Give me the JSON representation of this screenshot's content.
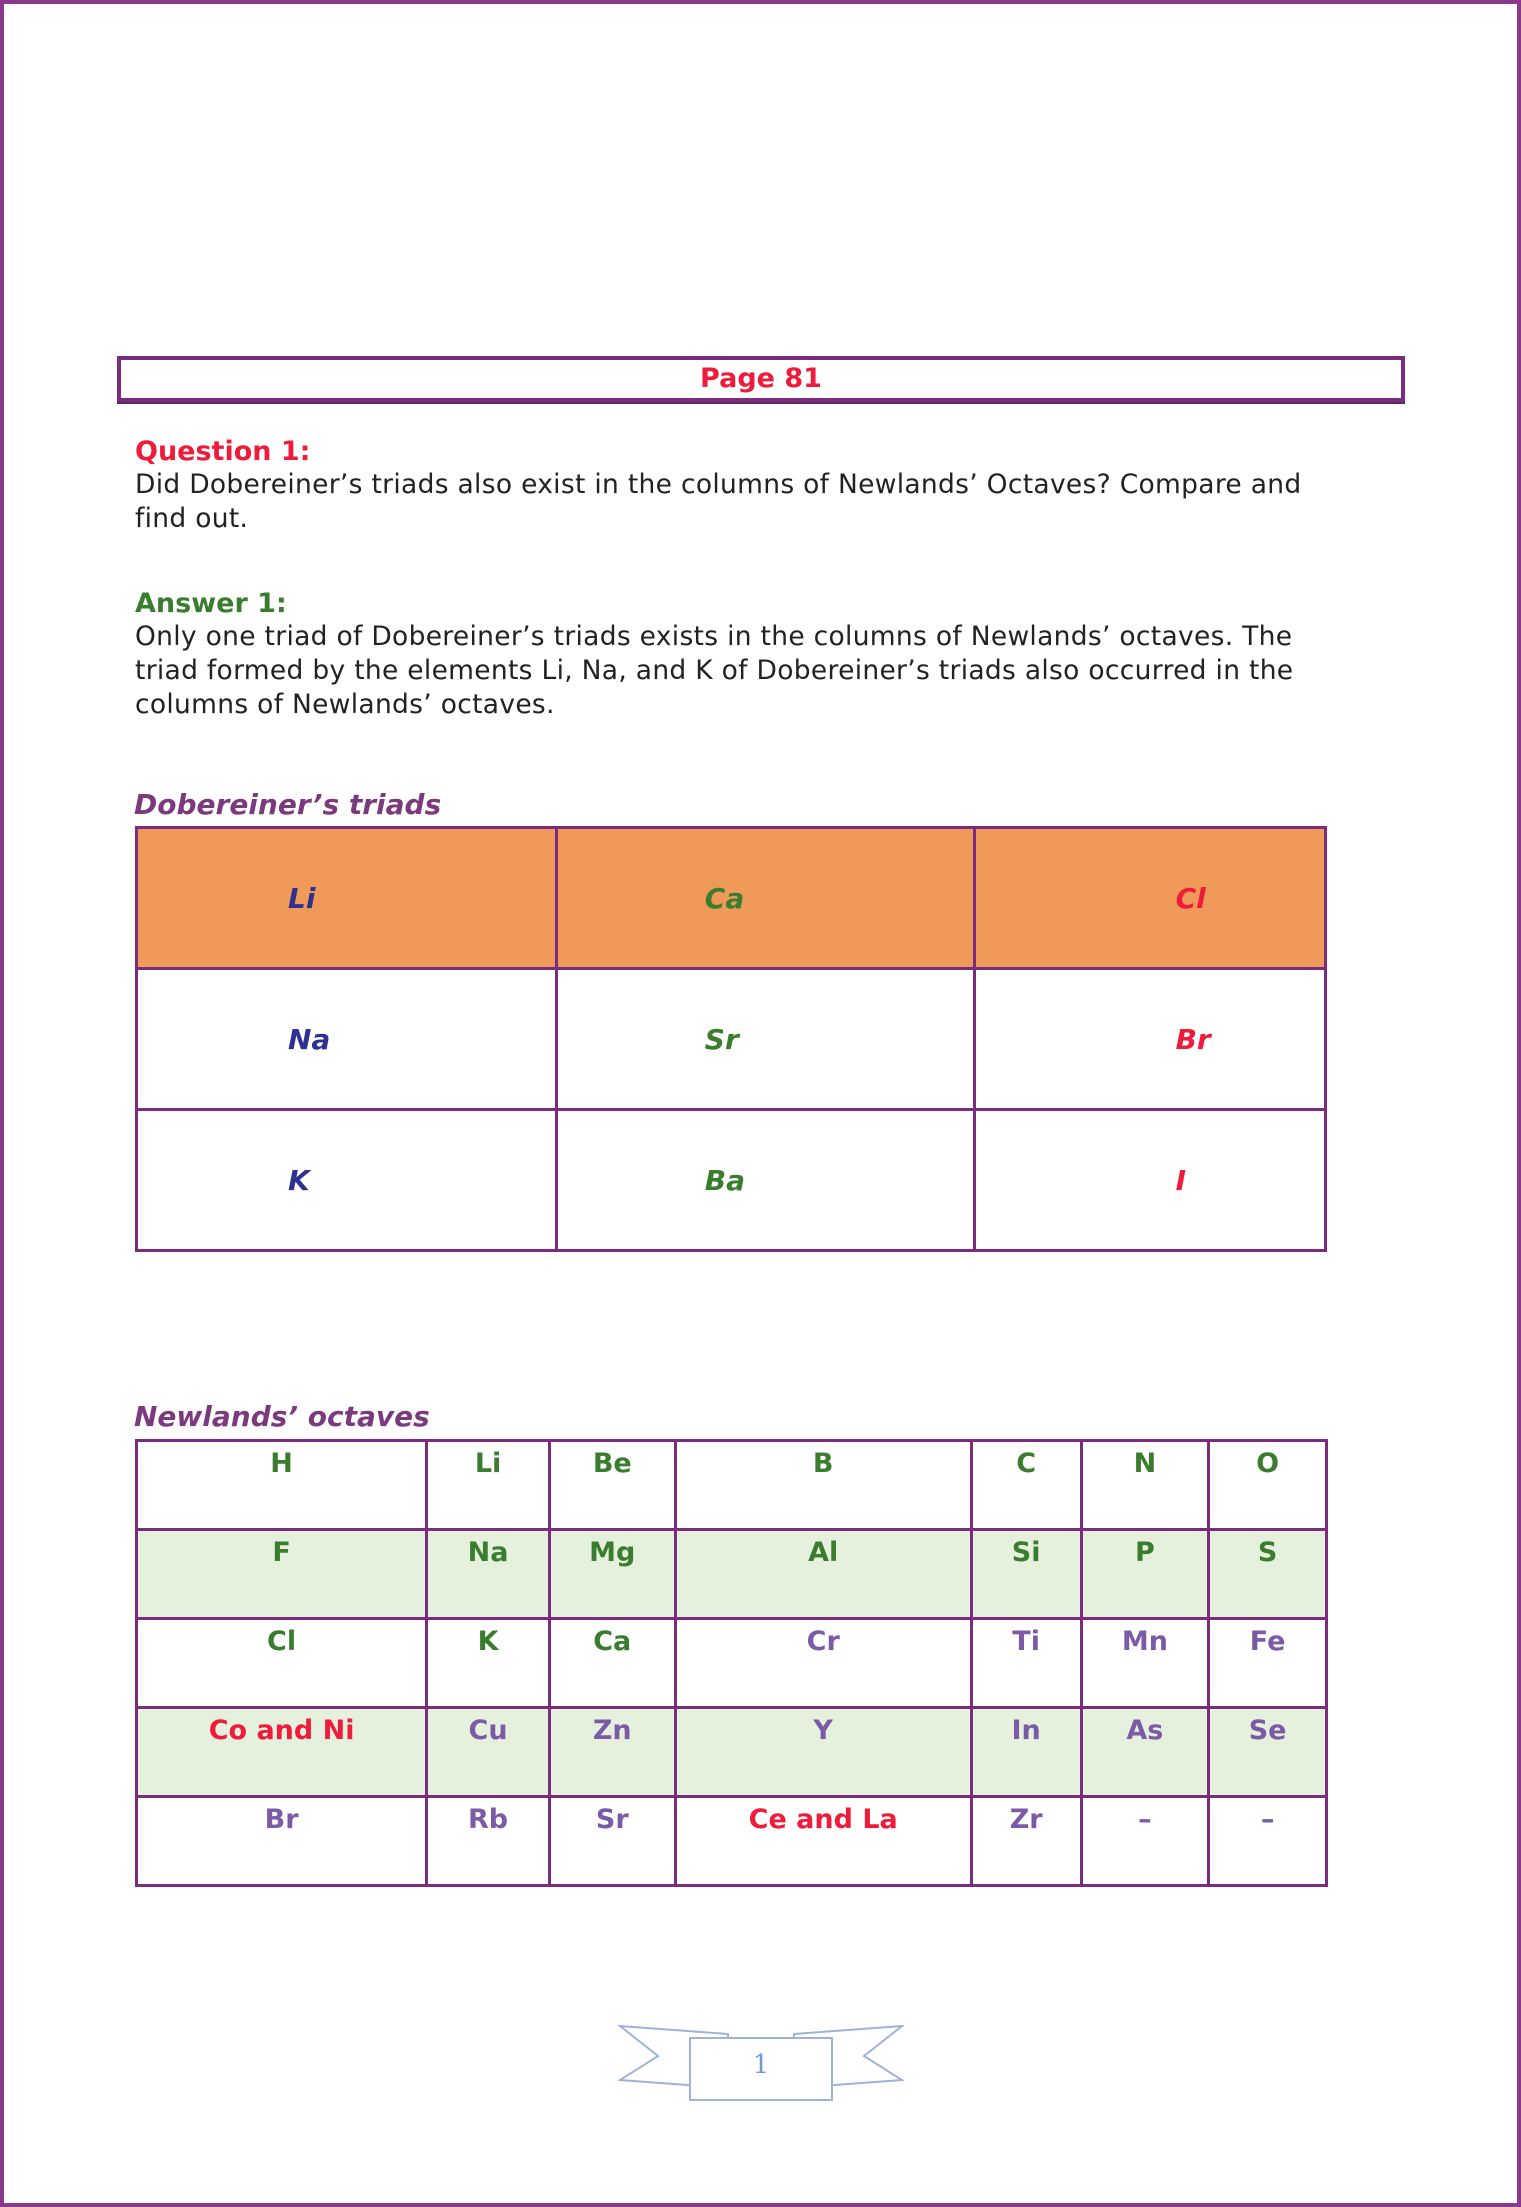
{
  "header": {
    "page_label": "Page 81"
  },
  "question": {
    "label": "Question 1:",
    "text": "Did Dobereiner’s triads also exist in the columns of Newlands’ Octaves? Compare and find out."
  },
  "answer": {
    "label": "Answer 1:",
    "text": "Only one triad of Dobereiner’s triads exists in the columns of Newlands’ octaves. The triad formed by the elements Li, Na, and K of Dobereiner’s triads also occurred in the columns of Newlands’ octaves."
  },
  "triads": {
    "caption": "Dobereiner’s triads",
    "header_color": "#ef9a58",
    "rows": [
      [
        "Li",
        "Ca",
        "Cl"
      ],
      [
        "Na",
        "Sr",
        "Br"
      ],
      [
        "K",
        "Ba",
        "I"
      ]
    ],
    "column_colors": [
      "#2e3192",
      "#3a7d2e",
      "#ee1c3a"
    ]
  },
  "newlands": {
    "caption": "Newlands’ octaves",
    "shade_color": "#e6f1dd",
    "rows": [
      [
        "H",
        "Li",
        "Be",
        "B",
        "C",
        "N",
        "O"
      ],
      [
        "F",
        "Na",
        "Mg",
        "Al",
        "Si",
        "P",
        "S"
      ],
      [
        "Cl",
        "K",
        "Ca",
        "Cr",
        "Ti",
        "Mn",
        "Fe"
      ],
      [
        "Co and Ni",
        "Cu",
        "Zn",
        "Y",
        "In",
        "As",
        "Se"
      ],
      [
        "Br",
        "Rb",
        "Sr",
        "Ce and La",
        "Zr",
        "–",
        "–"
      ]
    ],
    "colors": {
      "green": "#3a7d2e",
      "purple": "#7b5aa6",
      "red": "#ee1c3a"
    }
  },
  "footer": {
    "page_number": "1"
  }
}
